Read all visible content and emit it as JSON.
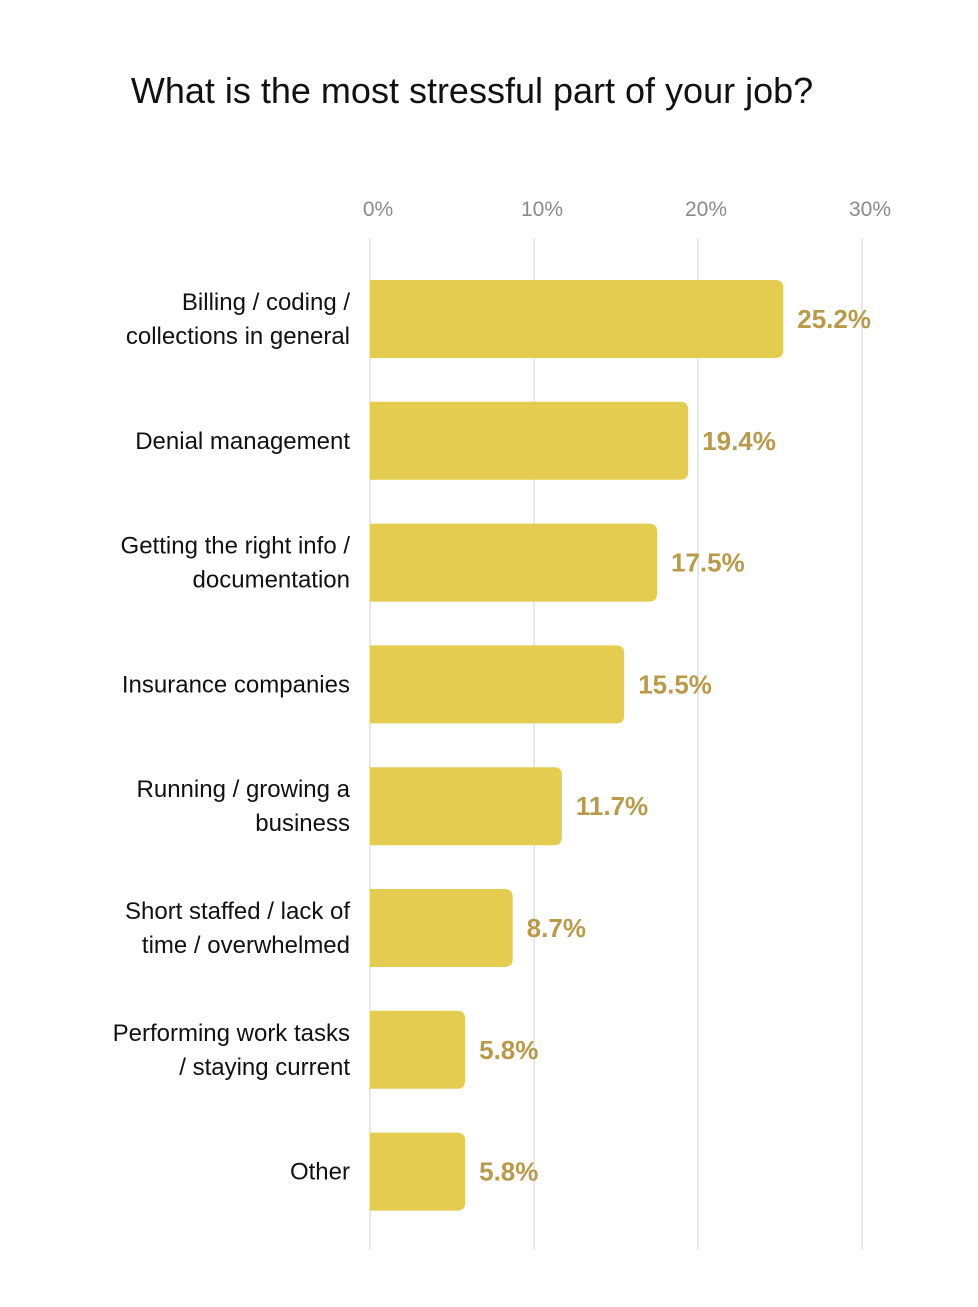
{
  "chart_data": {
    "type": "bar",
    "orientation": "horizontal",
    "title": "What is the most stressful part of your job?",
    "categories": [
      [
        "Billing / coding /",
        "collections in general"
      ],
      [
        "Denial management"
      ],
      [
        "Getting the right info /",
        "documentation"
      ],
      [
        "Insurance companies"
      ],
      [
        "Running / growing a",
        "business"
      ],
      [
        "Short staffed / lack of",
        "time / overwhelmed"
      ],
      [
        "Performing work tasks",
        "/ staying current"
      ],
      [
        "Other"
      ]
    ],
    "values": [
      25.2,
      19.4,
      17.5,
      15.5,
      11.7,
      8.7,
      5.8,
      5.8
    ],
    "value_labels": [
      "25.2%",
      "19.4%",
      "17.5%",
      "15.5%",
      "11.7%",
      "8.7%",
      "5.8%",
      "5.8%"
    ],
    "xlim": [
      0,
      30
    ],
    "xticks": [
      0,
      10,
      20,
      30
    ],
    "xtick_labels": [
      "0%",
      "10%",
      "20%",
      "30%"
    ],
    "xaxis_position": "top",
    "grid": true,
    "colors": {
      "bar": "#e4cc50",
      "value_label": "#b89a4a",
      "grid": "#d0d0d0"
    }
  }
}
